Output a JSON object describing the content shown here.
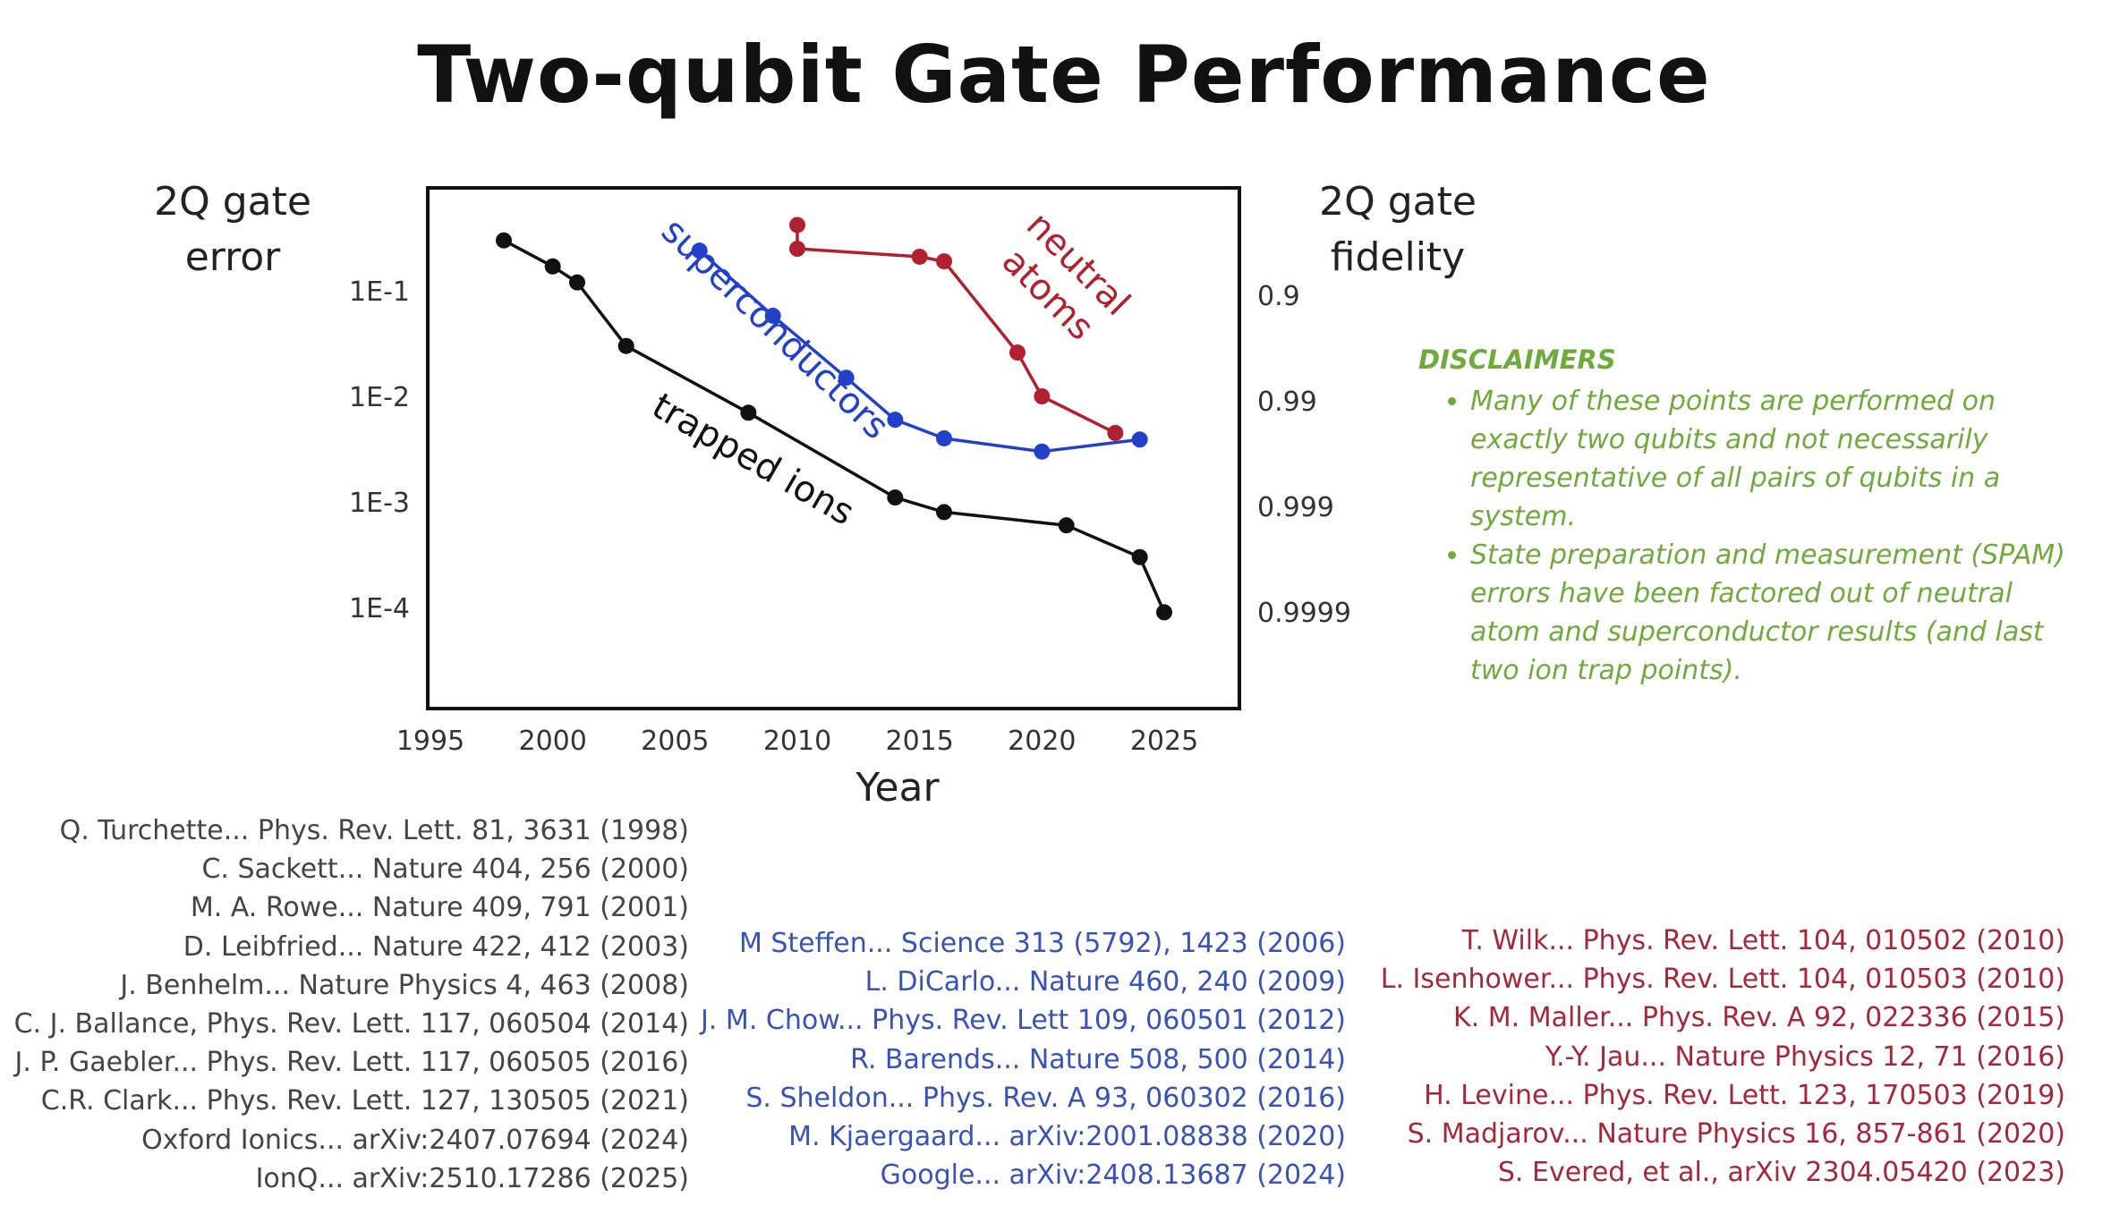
{
  "title": "Two-qubit Gate Performance",
  "colors": {
    "trapped_ions": "#111111",
    "superconductors": "#2340c9",
    "neutral_atoms": "#b0202e",
    "disclaimers": "#70a93c"
  },
  "chart_data": {
    "type": "line",
    "xlabel": "Year",
    "ylabel_left": "2Q gate error",
    "ylabel_right": "2Q gate fidelity",
    "x_ticks": [
      1995,
      2000,
      2005,
      2010,
      2015,
      2020,
      2025
    ],
    "xlim": [
      1995,
      2028
    ],
    "y_scale": "log",
    "ylim": [
      1.5e-05,
      1
    ],
    "y_ticks_left": [
      "1E-1",
      "1E-2",
      "1E-3",
      "1E-4"
    ],
    "y_ticks_right": [
      "0.9",
      "0.99",
      "0.999",
      "0.9999"
    ],
    "grid": false,
    "series": [
      {
        "name": "trapped ions",
        "color": "#111111",
        "x": [
          1998,
          2000,
          2001,
          2003,
          2008,
          2014,
          2016,
          2021,
          2024,
          2025
        ],
        "y": [
          0.3,
          0.17,
          0.12,
          0.03,
          0.007,
          0.0011,
          0.0008,
          0.0006,
          0.0003,
          9e-05
        ]
      },
      {
        "name": "superconductors",
        "color": "#2340c9",
        "x": [
          2006,
          2009,
          2012,
          2014,
          2016,
          2020,
          2024
        ],
        "y": [
          0.24,
          0.058,
          0.015,
          0.006,
          0.004,
          0.003,
          0.0039
        ]
      },
      {
        "name": "neutral atoms",
        "color": "#b0202e",
        "x": [
          2010,
          2010,
          2015,
          2016,
          2019,
          2020,
          2023
        ],
        "y": [
          0.42,
          0.25,
          0.21,
          0.19,
          0.026,
          0.01,
          0.0045
        ]
      }
    ]
  },
  "disclaimers": {
    "heading": "DISCLAIMERS",
    "items": [
      "Many of these points are performed on exactly two qubits and not necessarily representative of all pairs of qubits in a system.",
      "State preparation and measurement (SPAM) errors have been factored out of neutral atom and superconductor results (and last two ion trap points)."
    ]
  },
  "references": {
    "trapped_ions": [
      "Q. Turchette... Phys. Rev. Lett. 81, 3631 (1998)",
      "C. Sackett... Nature 404, 256 (2000)",
      "M. A. Rowe... Nature 409, 791 (2001)",
      "D. Leibfried... Nature 422, 412 (2003)",
      "J. Benhelm... Nature Physics 4, 463 (2008)",
      "C. J. Ballance, Phys. Rev. Lett. 117, 060504 (2014)",
      "J. P. Gaebler... Phys. Rev. Lett. 117, 060505 (2016)",
      "C.R. Clark... Phys. Rev. Lett. 127, 130505 (2021)",
      "Oxford Ionics... arXiv:2407.07694 (2024)",
      "IonQ... arXiv:2510.17286 (2025)"
    ],
    "superconductors": [
      "M Steffen... Science 313 (5792), 1423 (2006)",
      "L. DiCarlo... Nature 460, 240 (2009)",
      "J. M. Chow... Phys. Rev. Lett 109, 060501 (2012)",
      "R. Barends... Nature 508, 500 (2014)",
      "S. Sheldon... Phys. Rev. A 93, 060302 (2016)",
      "M. Kjaergaard... arXiv:2001.08838 (2020)",
      "Google... arXiv:2408.13687 (2024)"
    ],
    "neutral_atoms": [
      "T. Wilk... Phys. Rev. Lett. 104, 010502 (2010)",
      "L. Isenhower... Phys. Rev. Lett. 104, 010503 (2010)",
      "K. M. Maller... Phys. Rev. A 92, 022336 (2015)",
      "Y.-Y. Jau... Nature Physics 12, 71 (2016)",
      "H. Levine... Phys. Rev. Lett. 123, 170503 (2019)",
      "S. Madjarov... Nature Physics 16, 857-861 (2020)",
      "S. Evered, et al., arXiv 2304.05420 (2023)"
    ]
  }
}
